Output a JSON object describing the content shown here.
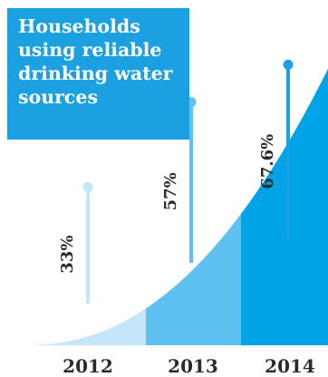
{
  "title_lines": [
    "Households",
    "using reliable",
    "drinking water",
    "sources"
  ],
  "colors": {
    "title_bg": "#1ba0e2",
    "title_text": "#ffffff",
    "band_2012": "#c5e6f8",
    "band_2013": "#5ec1ef",
    "band_2014": "#00a3e6",
    "pin_2012": "#c5e6f8",
    "pin_2013": "#5ec1ef",
    "pin_2014": "#1ba0e2",
    "text": "#2b2b2b"
  },
  "chart_data": {
    "type": "area",
    "categories": [
      "2012",
      "2013",
      "2014"
    ],
    "values": [
      33,
      57,
      67.6
    ],
    "value_labels": [
      "33%",
      "57%",
      "67.6%"
    ],
    "ylim": [
      0,
      100
    ]
  }
}
